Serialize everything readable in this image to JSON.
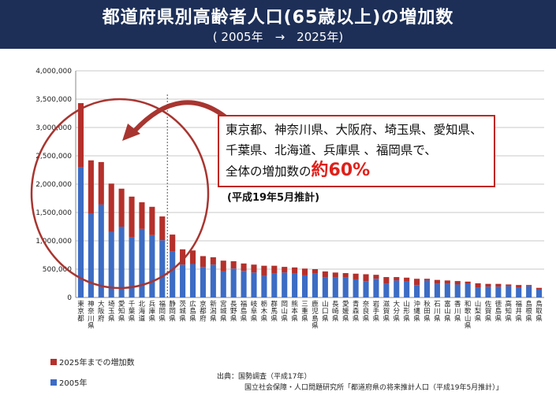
{
  "header": {
    "title": "都道府県別高齢者人口(65歳以上)の増加数",
    "subtitle": "( 2005年　→　2025年)"
  },
  "callout": {
    "line1": "東京都、神奈川県、大阪府、埼玉県、愛知県、",
    "line2": "千葉県、北海道、兵庫県 、福岡県で、",
    "line3_prefix": "全体の増加数の",
    "line3_emph": "約60%"
  },
  "note": "(平成19年5月推計)",
  "source": {
    "line1": "出典：国勢調査（平成17年）",
    "line2": "国立社会保障・人口問題研究所「都道府県の将来推計人口（平成19年5月推計）」"
  },
  "colors": {
    "base": "#3c6cc4",
    "increase": "#b5302b",
    "callout_border": "#c0281e",
    "highlight_circle": "#a83530",
    "header_bg": "#1d2f57"
  },
  "chart_data": {
    "type": "bar",
    "stacked": true,
    "ylim": [
      0,
      4000000
    ],
    "ytick_labels": [
      "0",
      "500,000",
      "1,000,000",
      "1,500,000",
      "2,000,000",
      "2,500,000",
      "3,000,000",
      "3,500,000",
      "4,000,000"
    ],
    "grid": true,
    "legend_position": "bottom-left",
    "categories": [
      "東京都",
      "神奈川県",
      "大阪府",
      "埼玉県",
      "愛知県",
      "千葉県",
      "北海道",
      "兵庫県",
      "福岡県",
      "静岡県",
      "茨城県",
      "広島県",
      "京都府",
      "新潟県",
      "宮城県",
      "長野県",
      "福島県",
      "岐阜県",
      "栃木県",
      "群馬県",
      "岡山県",
      "熊本県",
      "三重県",
      "鹿児島県",
      "山口県",
      "長崎県",
      "愛媛県",
      "青森県",
      "奈良県",
      "岩手県",
      "滋賀県",
      "大分県",
      "山形県",
      "沖縄県",
      "秋田県",
      "石川県",
      "富山県",
      "香川県",
      "和歌山県",
      "山梨県",
      "佐賀県",
      "徳島県",
      "高知県",
      "福井県",
      "島根県",
      "鳥取県"
    ],
    "series": [
      {
        "name": "2005年",
        "values": [
          2300000,
          1480000,
          1640000,
          1160000,
          1250000,
          1060000,
          1210000,
          1100000,
          1010000,
          810000,
          580000,
          590000,
          540000,
          580000,
          460000,
          510000,
          470000,
          440000,
          380000,
          420000,
          440000,
          430000,
          390000,
          420000,
          360000,
          350000,
          350000,
          320000,
          290000,
          330000,
          240000,
          300000,
          280000,
          220000,
          300000,
          240000,
          240000,
          230000,
          250000,
          180000,
          190000,
          190000,
          200000,
          180000,
          200000,
          140000
        ]
      },
      {
        "name": "2025年までの増加数",
        "values": [
          1130000,
          940000,
          750000,
          850000,
          670000,
          720000,
          470000,
          500000,
          420000,
          300000,
          270000,
          240000,
          190000,
          130000,
          190000,
          130000,
          130000,
          140000,
          180000,
          140000,
          100000,
          100000,
          120000,
          80000,
          100000,
          90000,
          80000,
          100000,
          120000,
          70000,
          120000,
          60000,
          70000,
          110000,
          30000,
          70000,
          60000,
          60000,
          30000,
          70000,
          50000,
          50000,
          30000,
          40000,
          20000,
          30000
        ]
      }
    ]
  }
}
